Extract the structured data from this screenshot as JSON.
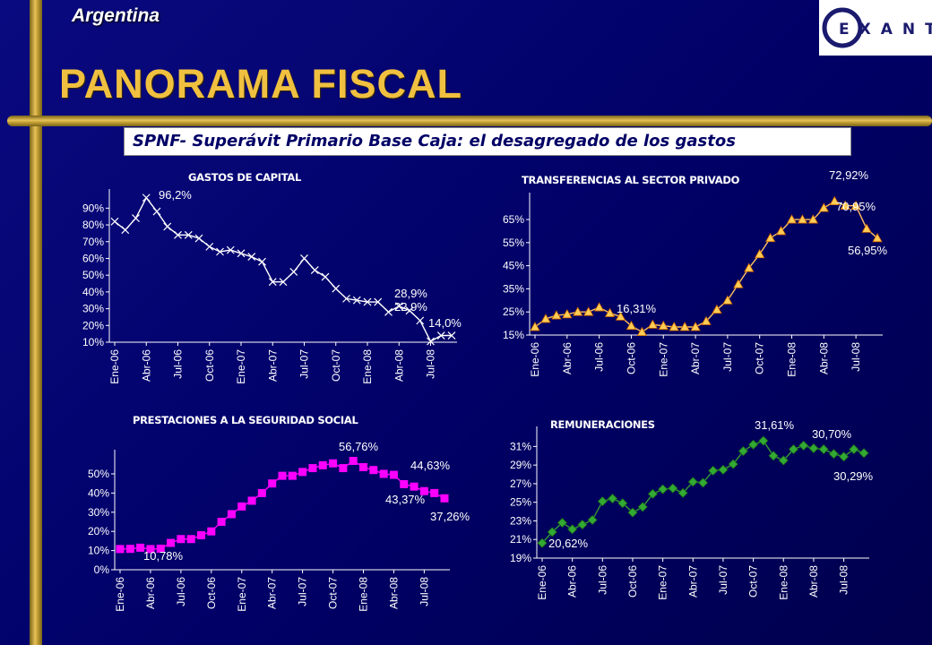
{
  "header": {
    "country": "Argentina",
    "title": "PANORAMA FISCAL",
    "subtitle": "SPNF- Superávit Primario Base Caja: el desagregado de los gastos",
    "logo_text": "EXANTE"
  },
  "colors": {
    "background": "#000080",
    "title": "#f0c040",
    "gold_bar": "#c9a437"
  },
  "chart_data": [
    {
      "id": "capital",
      "type": "line",
      "title": "GASTOS DE CAPITAL",
      "marker": "x",
      "color": "#ffffff",
      "ylim": [
        10,
        95
      ],
      "yticks": [
        "10%",
        "20%",
        "30%",
        "40%",
        "50%",
        "60%",
        "70%",
        "80%",
        "90%"
      ],
      "xtick_labels": [
        "Ene-06",
        "Abr-06",
        "Jul-06",
        "Oct-06",
        "Ene-07",
        "Abr-07",
        "Jul-07",
        "Oct-07",
        "Ene-08",
        "Abr-08",
        "Jul-08"
      ],
      "x": [
        "Ene-06",
        "Feb-06",
        "Mar-06",
        "Abr-06",
        "May-06",
        "Jun-06",
        "Jul-06",
        "Ago-06",
        "Sep-06",
        "Oct-06",
        "Nov-06",
        "Dic-06",
        "Ene-07",
        "Feb-07",
        "Mar-07",
        "Abr-07",
        "May-07",
        "Jun-07",
        "Jul-07",
        "Ago-07",
        "Sep-07",
        "Oct-07",
        "Nov-07",
        "Dic-07",
        "Ene-08",
        "Feb-08",
        "Mar-08",
        "Abr-08",
        "May-08",
        "Jun-08",
        "Jul-08",
        "Ago-08",
        "Sep-08"
      ],
      "values": [
        82,
        77,
        84,
        96.2,
        88,
        79,
        74,
        74,
        72,
        67,
        64,
        65,
        63,
        61,
        58,
        46,
        46,
        52,
        60,
        53,
        49,
        42,
        36,
        35,
        34,
        34,
        28,
        31.5,
        28.9,
        22.9,
        10.5,
        14,
        14
      ],
      "annotations": [
        {
          "text": "96,2%",
          "index": 3
        },
        {
          "text": "28,9%",
          "index": 28
        },
        {
          "text": "22,9%",
          "index": 29
        },
        {
          "text": "14,0%",
          "index": 31
        }
      ]
    },
    {
      "id": "transferencias",
      "type": "line",
      "title": "TRANSFERENCIAS AL SECTOR PRIVADO",
      "marker": "triangle",
      "color": "#ffc060",
      "ylim": [
        15,
        72
      ],
      "yticks": [
        "15%",
        "25%",
        "35%",
        "45%",
        "55%",
        "65%"
      ],
      "xtick_labels": [
        "Ene-06",
        "Abr-06",
        "Jul-06",
        "Oct-06",
        "Ene-07",
        "Abr-07",
        "Jul-07",
        "Oct-07",
        "Ene-08",
        "Abr-08",
        "Jul-08"
      ],
      "x": [
        "Ene-06",
        "Feb-06",
        "Mar-06",
        "Abr-06",
        "May-06",
        "Jun-06",
        "Jul-06",
        "Ago-06",
        "Sep-06",
        "Oct-06",
        "Nov-06",
        "Dic-06",
        "Ene-07",
        "Feb-07",
        "Mar-07",
        "Abr-07",
        "May-07",
        "Jun-07",
        "Jul-07",
        "Ago-07",
        "Sep-07",
        "Oct-07",
        "Nov-07",
        "Dic-07",
        "Ene-08",
        "Feb-08",
        "Mar-08",
        "Abr-08",
        "May-08",
        "Jun-08",
        "Jul-08",
        "Ago-08",
        "Sep-08"
      ],
      "values": [
        18.5,
        22,
        23.5,
        24,
        25,
        25,
        27,
        24.5,
        23,
        19,
        16.31,
        19.5,
        19,
        18.5,
        18.5,
        18.5,
        21,
        26,
        30,
        37,
        44,
        50,
        57,
        60,
        65,
        65,
        65,
        70,
        72.92,
        71,
        70.95,
        61,
        56.95
      ],
      "annotations": [
        {
          "text": "16,31%",
          "index": 10
        },
        {
          "text": "72,92%",
          "index": 28
        },
        {
          "text": "70,95%",
          "index": 30
        },
        {
          "text": "56,95%",
          "index": 32
        }
      ]
    },
    {
      "id": "prestaciones",
      "type": "line",
      "title": "PRESTACIONES A LA SEGURIDAD SOCIAL",
      "marker": "square",
      "color": "#ff00ff",
      "ylim": [
        0,
        57
      ],
      "yticks": [
        "0%",
        "10%",
        "20%",
        "30%",
        "40%",
        "50%"
      ],
      "xtick_labels": [
        "Ene-06",
        "Abr-06",
        "Jul-06",
        "Oct-06",
        "Ene-07",
        "Abr-07",
        "Jul-07",
        "Oct-07",
        "Ene-08",
        "Abr-08",
        "Jul-08"
      ],
      "x": [
        "Ene-06",
        "Feb-06",
        "Mar-06",
        "Abr-06",
        "May-06",
        "Jun-06",
        "Jul-06",
        "Ago-06",
        "Sep-06",
        "Oct-06",
        "Nov-06",
        "Dic-06",
        "Ene-07",
        "Feb-07",
        "Mar-07",
        "Abr-07",
        "May-07",
        "Jun-07",
        "Jul-07",
        "Ago-07",
        "Sep-07",
        "Oct-07",
        "Nov-07",
        "Dic-07",
        "Ene-08",
        "Feb-08",
        "Mar-08",
        "Abr-08",
        "May-08",
        "Jun-08",
        "Jul-08",
        "Ago-08",
        "Sep-08"
      ],
      "values": [
        10.8,
        10.9,
        11.5,
        10.78,
        11,
        14,
        16,
        16,
        18,
        20,
        25,
        29,
        33,
        36,
        40,
        45,
        49,
        49,
        51,
        53,
        54.5,
        55.5,
        53,
        56.76,
        53.5,
        52,
        50,
        49.5,
        44.63,
        43.37,
        41,
        40,
        37.26
      ],
      "annotations": [
        {
          "text": "10,78%",
          "index": 3
        },
        {
          "text": "56,76%",
          "index": 23
        },
        {
          "text": "44,63%",
          "index": 28
        },
        {
          "text": "43,37%",
          "index": 29
        },
        {
          "text": "37,26%",
          "index": 32
        }
      ]
    },
    {
      "id": "remuneraciones",
      "type": "line",
      "title": "REMUNERACIONES",
      "marker": "diamond",
      "color": "#339933",
      "ylim": [
        19,
        32
      ],
      "yticks": [
        "19%",
        "21%",
        "23%",
        "25%",
        "27%",
        "29%",
        "31%"
      ],
      "xtick_labels": [
        "Ene-06",
        "Abr-06",
        "Jul-06",
        "Oct-06",
        "Ene-07",
        "Abr-07",
        "Jul-07",
        "Oct-07",
        "Ene-08",
        "Abr-08",
        "Jul-08"
      ],
      "x": [
        "Ene-06",
        "Feb-06",
        "Mar-06",
        "Abr-06",
        "May-06",
        "Jun-06",
        "Jul-06",
        "Ago-06",
        "Sep-06",
        "Oct-06",
        "Nov-06",
        "Dic-06",
        "Ene-07",
        "Feb-07",
        "Mar-07",
        "Abr-07",
        "May-07",
        "Jun-07",
        "Jul-07",
        "Ago-07",
        "Sep-07",
        "Oct-07",
        "Nov-07",
        "Dic-07",
        "Ene-08",
        "Feb-08",
        "Mar-08",
        "Abr-08",
        "May-08",
        "Jun-08",
        "Jul-08",
        "Ago-08",
        "Sep-08"
      ],
      "values": [
        20.62,
        21.8,
        22.8,
        22.1,
        22.6,
        23.1,
        25.1,
        25.4,
        24.9,
        23.9,
        24.5,
        25.9,
        26.4,
        26.5,
        26.0,
        27.2,
        27.1,
        28.4,
        28.5,
        29.1,
        30.5,
        31.2,
        31.61,
        30.0,
        29.5,
        30.7,
        31.1,
        30.8,
        30.7,
        30.2,
        29.9,
        30.7,
        30.29
      ],
      "annotations": [
        {
          "text": "20,62%",
          "index": 0
        },
        {
          "text": "31,61%",
          "index": 22
        },
        {
          "text": "30,70%",
          "index": 28
        },
        {
          "text": "30,29%",
          "index": 32
        }
      ]
    }
  ]
}
